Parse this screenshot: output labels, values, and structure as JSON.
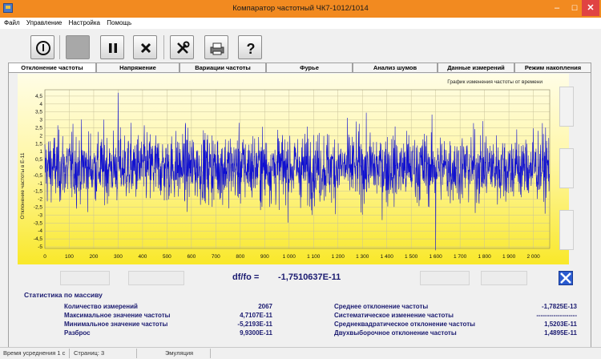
{
  "window": {
    "title": "Компаратор частотный ЧК7-1012/1014",
    "minimize": "–",
    "maximize": "☐",
    "close": "✕"
  },
  "menu": [
    "Файл",
    "Управление",
    "Настройка",
    "Помощь"
  ],
  "toolbar": {
    "icons": [
      "power-icon",
      "stop-icon",
      "pause-icon",
      "cancel-icon",
      "tools-icon",
      "print-icon",
      "help-icon"
    ]
  },
  "tabs": [
    {
      "label": "Отклонение частоты",
      "active": true
    },
    {
      "label": "Напряжение",
      "active": false
    },
    {
      "label": "Вариации частоты",
      "active": false
    },
    {
      "label": "Фурье",
      "active": false
    },
    {
      "label": "Анализ шумов",
      "active": false
    },
    {
      "label": "Данные измерений",
      "active": false
    },
    {
      "label": "Режим накопления",
      "active": false
    }
  ],
  "chart_data": {
    "type": "line",
    "title": "График изменения частоты от времени",
    "xlabel": "",
    "ylabel": "Отклонение частоты в Е-11",
    "xlim": [
      0,
      2067
    ],
    "ylim": [
      -5.1,
      4.9
    ],
    "x_ticks": [
      "0",
      "100",
      "200",
      "300",
      "400",
      "500",
      "600",
      "700",
      "800",
      "900",
      "1 000",
      "1 100",
      "1 200",
      "1 300",
      "1 400",
      "1 500",
      "1 600",
      "1 700",
      "1 800",
      "1 900",
      "2 000"
    ],
    "y_ticks": [
      "4,5",
      "4",
      "3,5",
      "3",
      "2,5",
      "2",
      "1,5",
      "1",
      "0,5",
      "0",
      "-0,5",
      "-1",
      "-1,5",
      "-2",
      "-2,5",
      "-3",
      "-3,5",
      "-4",
      "-4,5",
      "-5"
    ],
    "series": [
      {
        "color": "#1010d0",
        "count": 2067,
        "min": -5.2193,
        "max": 4.7107,
        "mean": -0.00017825
      }
    ],
    "grid": true,
    "background": "yellow-gradient"
  },
  "measurement": {
    "label": "df/fo =",
    "value": "-1,7510637E-11"
  },
  "stats": {
    "title": "Статистика по массиву",
    "left": [
      {
        "label": "Количество измерений",
        "value": "2067"
      },
      {
        "label": "Максимальное значение частоты",
        "value": "4,7107E-11"
      },
      {
        "label": "Минимальное значение частоты",
        "value": "-5,2193E-11"
      },
      {
        "label": "Разброс",
        "value": "9,9300E-11"
      }
    ],
    "right": [
      {
        "label": "Среднее отклонение частоты",
        "value": "-1,7825E-13"
      },
      {
        "label": "Систематическое изменение частоты",
        "value": "-------------------"
      },
      {
        "label": "Среднеквадратическое отклонение частоты",
        "value": "1,5203E-11"
      },
      {
        "label": "Двухвыборочное отклонение частоты",
        "value": "1,4895E-11"
      }
    ]
  },
  "status": {
    "averaging": "Время усреднения 1 с",
    "pages": "Страниц: 3",
    "mode": "Эмуляция"
  }
}
